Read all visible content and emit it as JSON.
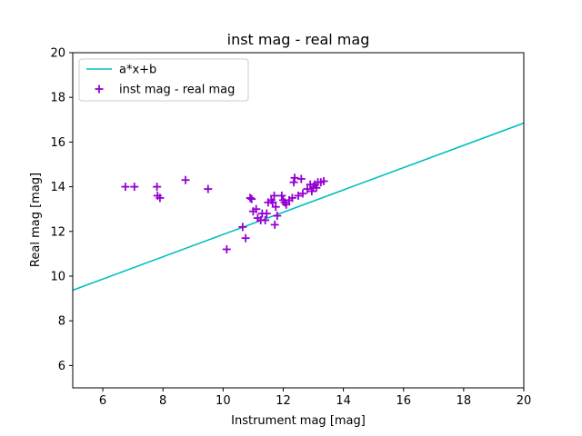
{
  "chart_data": {
    "type": "scatter",
    "title": "inst mag - real mag",
    "xlabel": "Instrument mag [mag]",
    "ylabel": "Real mag [mag]",
    "xlim": [
      5,
      20
    ],
    "ylim": [
      5,
      20
    ],
    "xticks": [
      6,
      8,
      10,
      12,
      14,
      16,
      18,
      20
    ],
    "yticks": [
      6,
      8,
      10,
      12,
      14,
      16,
      18,
      20
    ],
    "grid": false,
    "legend_position": "top-left",
    "series": [
      {
        "name": "a*x+b",
        "kind": "line",
        "color": "#00bfbf",
        "x": [
          5,
          20
        ],
        "y": [
          9.37,
          16.85
        ]
      },
      {
        "name": "inst mag - real mag",
        "kind": "scatter",
        "marker": "plus",
        "color": "#9400d3",
        "points": [
          [
            6.75,
            14.0
          ],
          [
            7.05,
            14.0
          ],
          [
            7.8,
            14.0
          ],
          [
            7.82,
            13.6
          ],
          [
            7.9,
            13.5
          ],
          [
            8.75,
            14.3
          ],
          [
            9.5,
            13.9
          ],
          [
            10.12,
            11.2
          ],
          [
            10.65,
            12.2
          ],
          [
            10.75,
            11.7
          ],
          [
            10.9,
            13.5
          ],
          [
            10.95,
            13.45
          ],
          [
            11.0,
            12.9
          ],
          [
            11.1,
            13.0
          ],
          [
            11.15,
            12.6
          ],
          [
            11.25,
            12.5
          ],
          [
            11.3,
            12.8
          ],
          [
            11.4,
            12.5
          ],
          [
            11.45,
            12.8
          ],
          [
            11.5,
            13.3
          ],
          [
            11.6,
            13.4
          ],
          [
            11.65,
            13.3
          ],
          [
            11.7,
            13.6
          ],
          [
            11.72,
            12.3
          ],
          [
            11.75,
            13.1
          ],
          [
            11.8,
            12.7
          ],
          [
            11.95,
            13.6
          ],
          [
            12.0,
            13.4
          ],
          [
            12.05,
            13.3
          ],
          [
            12.1,
            13.2
          ],
          [
            12.2,
            13.4
          ],
          [
            12.3,
            13.5
          ],
          [
            12.35,
            14.2
          ],
          [
            12.38,
            14.4
          ],
          [
            12.5,
            13.6
          ],
          [
            12.6,
            14.35
          ],
          [
            12.65,
            13.7
          ],
          [
            12.8,
            13.9
          ],
          [
            12.9,
            14.1
          ],
          [
            12.95,
            13.8
          ],
          [
            13.0,
            14.0
          ],
          [
            13.05,
            14.1
          ],
          [
            13.1,
            13.95
          ],
          [
            13.15,
            14.2
          ],
          [
            13.25,
            14.2
          ],
          [
            13.35,
            14.25
          ]
        ]
      }
    ]
  }
}
